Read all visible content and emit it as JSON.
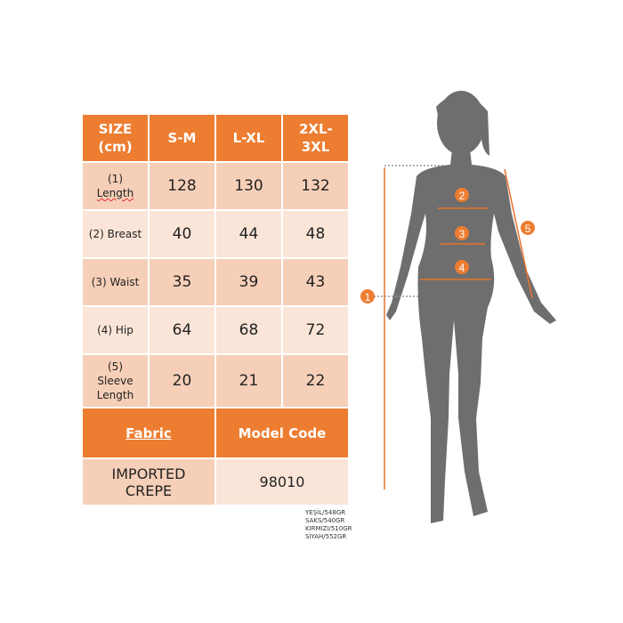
{
  "table": {
    "header": [
      "SIZE (cm)",
      "S-M",
      "L-XL",
      "2XL-3XL"
    ],
    "rows": [
      {
        "label_num": "(1)",
        "label": "Length",
        "values": [
          "128",
          "130",
          "132"
        ]
      },
      {
        "label": "(2) Breast",
        "values": [
          "40",
          "44",
          "48"
        ]
      },
      {
        "label": "(3) Waist",
        "values": [
          "35",
          "39",
          "43"
        ]
      },
      {
        "label": "(4) Hip",
        "values": [
          "64",
          "68",
          "72"
        ]
      },
      {
        "label_num": "(5)",
        "label": "Sleeve Length",
        "values": [
          "20",
          "21",
          "22"
        ]
      }
    ],
    "fabric_header": "Fabric",
    "model_code_header": "Model Code",
    "fabric": "IMPORTED CREPE",
    "model_code": "98010"
  },
  "weights": [
    "YEŞİL/548GR",
    "SAKS/540GR",
    "KIRMIZI/510GR",
    "SİYAH/552GR"
  ],
  "markers": [
    "1",
    "2",
    "3",
    "4",
    "5"
  ],
  "colors": {
    "accent": "#ED7D31",
    "cell_dark": "#F6CFB8",
    "cell_light": "#FBE5D8",
    "silhouette": "#6e6e6e"
  }
}
